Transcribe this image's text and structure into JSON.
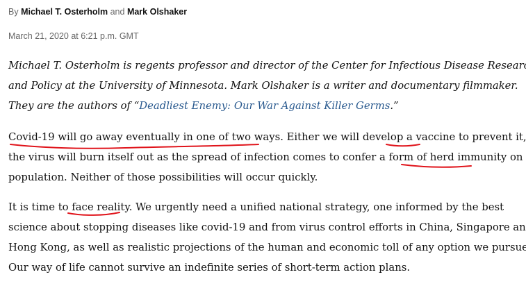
{
  "byline": {
    "prefix": "By",
    "author1": "Michael T. Osterholm",
    "joiner": "and",
    "author2": "Mark Olshaker"
  },
  "dateline": "March 21, 2020 at 6:21 p.m. GMT",
  "bio": {
    "line1": "Michael T. Osterholm is regents professor and director of the Center for Infectious Disease Research",
    "line2": "and Policy at the University of Minnesota. Mark Olshaker is a writer and documentary filmmaker.",
    "line3_pre": "They are the authors of “",
    "line3_link": "Deadliest Enemy: Our War Against Killer Germs",
    "line3_post": ".”"
  },
  "paragraph1": {
    "line1": "Covid-19 will go away eventually in one of two ways. Either we will develop a vaccine to prevent it, or",
    "line2": "the virus will burn itself out as the spread of infection comes to confer a form of herd immunity on the",
    "line3": "population. Neither of those possibilities will occur quickly."
  },
  "paragraph2": {
    "line1": "It is time to face reality. We urgently need a unified national strategy, one informed by the best",
    "line2": "science about stopping diseases like covid-19 and from virus control efforts in China, Singapore and",
    "line3": "Hong Kong, as well as realistic projections of the human and economic toll of any option we pursue.",
    "line4": "Our way of life cannot survive an indefinite series of short-term action plans."
  },
  "annotation_color": "#e0141b"
}
